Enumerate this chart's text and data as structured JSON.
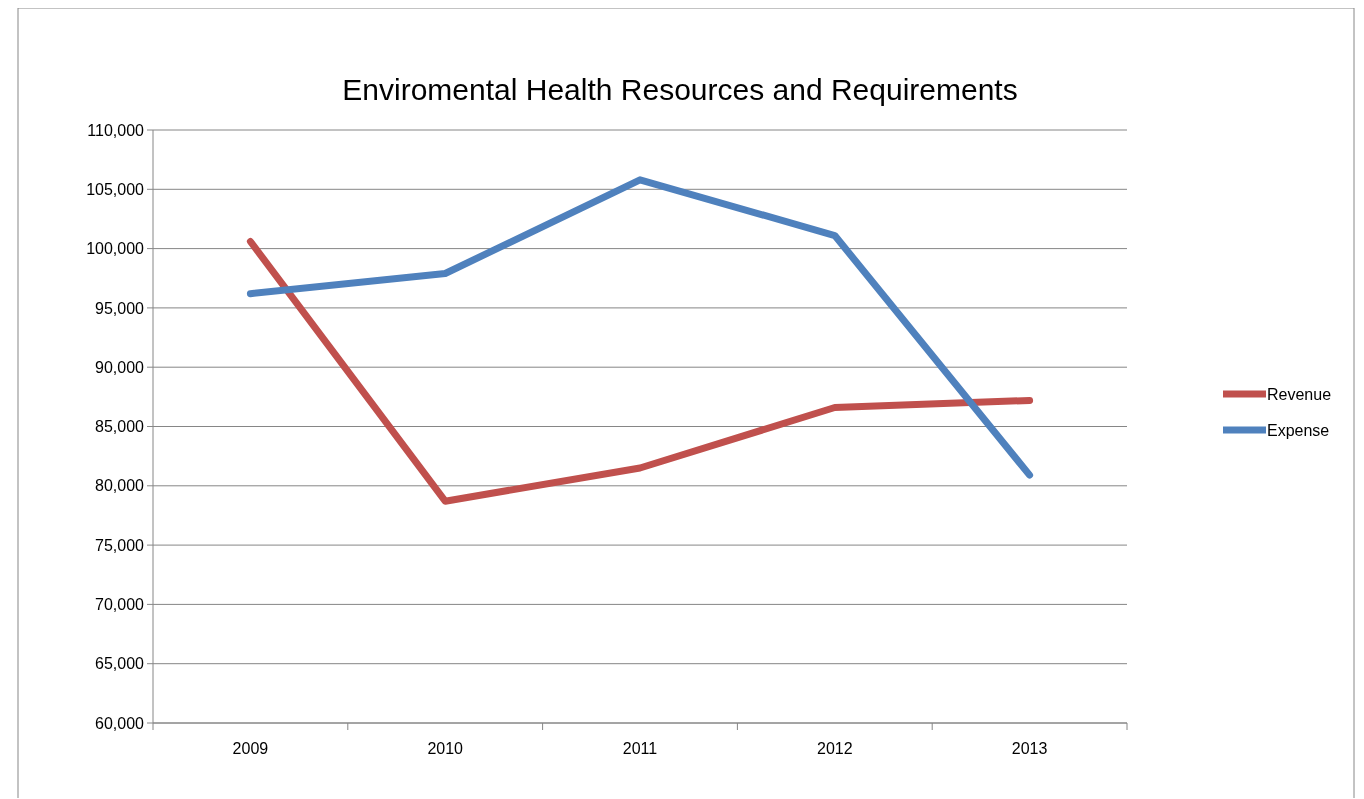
{
  "chart_data": {
    "type": "line",
    "title": "Enviromental Health Resources and  Requirements",
    "categories": [
      "2009",
      "2010",
      "2011",
      "2012",
      "2013"
    ],
    "series": [
      {
        "name": "Revenue",
        "color": "#c0504d",
        "values": [
          100600,
          78700,
          81500,
          86600,
          87200
        ]
      },
      {
        "name": "Expense",
        "color": "#4f81bd",
        "values": [
          96200,
          97900,
          105800,
          101100,
          80900
        ]
      }
    ],
    "ylim": [
      60000,
      110000
    ],
    "yticks": [
      {
        "value": 60000,
        "label": "60,000"
      },
      {
        "value": 65000,
        "label": "65,000"
      },
      {
        "value": 70000,
        "label": "70,000"
      },
      {
        "value": 75000,
        "label": "75,000"
      },
      {
        "value": 80000,
        "label": "80,000"
      },
      {
        "value": 85000,
        "label": "85,000"
      },
      {
        "value": 90000,
        "label": "90,000"
      },
      {
        "value": 95000,
        "label": "95,000"
      },
      {
        "value": 100000,
        "label": "100,000"
      },
      {
        "value": 105000,
        "label": "105,000"
      },
      {
        "value": 110000,
        "label": "110,000"
      }
    ],
    "grid": "y",
    "legend": "right",
    "marker": "none",
    "line_style": "solid"
  }
}
